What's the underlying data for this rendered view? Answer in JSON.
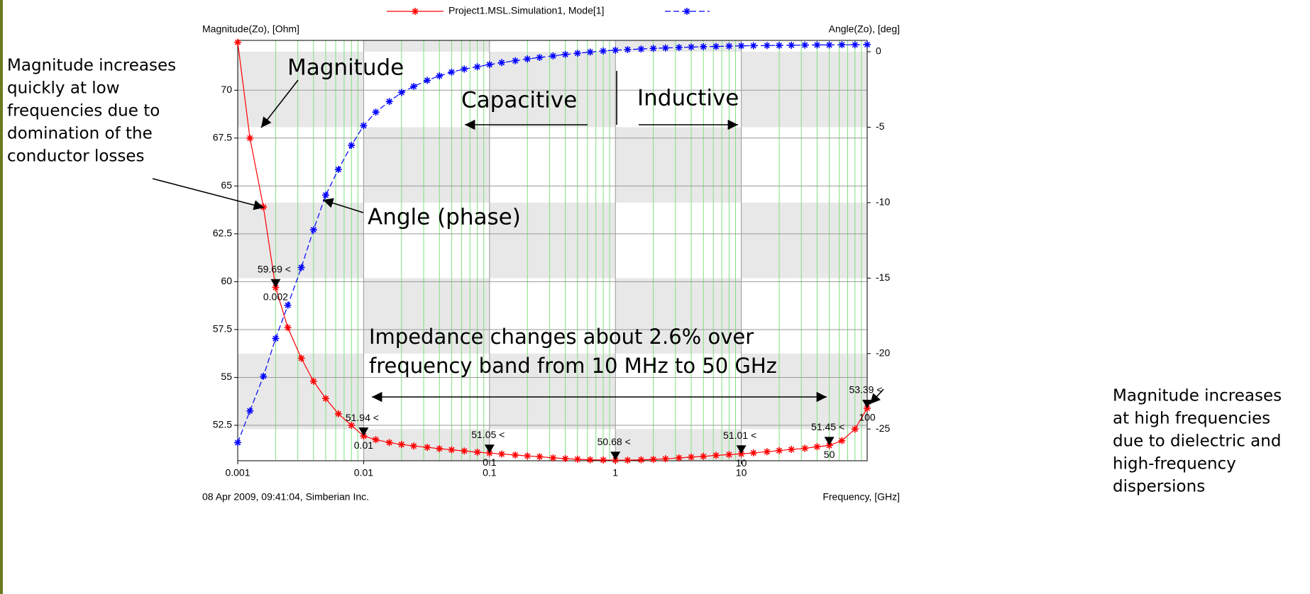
{
  "chart_data": {
    "type": "line",
    "legend_entries": [
      "Project1.MSL.Simulation1, Mode[1]"
    ],
    "y_label": "Magnitude(Zo), [Ohm]",
    "y2_label": "Angle(Zo), [deg]",
    "x_label": "Frequency, [GHz]",
    "footer": "08 Apr 2009, 09:41:04, Simberian Inc.",
    "x_scale": "log",
    "grid": true,
    "xlim": [
      0.001,
      100
    ],
    "xticks": [
      0.001,
      0.01,
      0.1,
      1,
      10
    ],
    "ylim": [
      50.65,
      72.6
    ],
    "yticks": [
      52.5,
      55,
      57.5,
      60,
      62.5,
      65,
      67.5,
      70
    ],
    "y2lim": [
      -27.1,
      0.75
    ],
    "y2ticks": [
      0,
      -5,
      -10,
      -15,
      -20,
      -25
    ],
    "x": [
      0.001,
      0.00125,
      0.0016,
      0.002,
      0.0025,
      0.0032,
      0.004,
      0.005,
      0.0063,
      0.008,
      0.01,
      0.0125,
      0.016,
      0.02,
      0.025,
      0.032,
      0.04,
      0.05,
      0.063,
      0.08,
      0.1,
      0.125,
      0.16,
      0.2,
      0.25,
      0.32,
      0.4,
      0.5,
      0.63,
      0.8,
      1,
      1.25,
      1.6,
      2,
      2.5,
      3.2,
      4,
      5,
      6.3,
      8,
      10,
      12.5,
      16,
      20,
      25,
      32,
      40,
      50,
      63,
      80,
      100
    ],
    "series": [
      {
        "name": "Project1.MSL.Simulation1, Mode[1]",
        "color": "#ff0000",
        "axis": "y",
        "values": [
          72.5,
          67.5,
          63.9,
          59.7,
          57.6,
          56.0,
          54.8,
          53.9,
          53.1,
          52.5,
          51.94,
          51.75,
          51.6,
          51.5,
          51.42,
          51.35,
          51.28,
          51.22,
          51.16,
          51.1,
          51.05,
          51.0,
          50.95,
          50.9,
          50.86,
          50.8,
          50.76,
          50.73,
          50.7,
          50.69,
          50.68,
          50.68,
          50.7,
          50.72,
          50.75,
          50.8,
          50.84,
          50.88,
          50.93,
          50.97,
          51.01,
          51.06,
          51.12,
          51.18,
          51.24,
          51.3,
          51.38,
          51.45,
          51.7,
          52.3,
          53.39
        ]
      },
      {
        "color": "#0000ff",
        "axis": "y2",
        "values": [
          -25.9,
          -23.8,
          -21.5,
          -19.0,
          -16.8,
          -14.3,
          -11.8,
          -9.5,
          -7.8,
          -6.2,
          -4.9,
          -4.0,
          -3.3,
          -2.7,
          -2.3,
          -1.9,
          -1.6,
          -1.35,
          -1.15,
          -1.0,
          -0.85,
          -0.72,
          -0.6,
          -0.48,
          -0.38,
          -0.28,
          -0.18,
          -0.1,
          -0.02,
          0.05,
          0.1,
          0.14,
          0.18,
          0.22,
          0.25,
          0.28,
          0.31,
          0.33,
          0.35,
          0.37,
          0.39,
          0.4,
          0.41,
          0.42,
          0.43,
          0.44,
          0.45,
          0.45,
          0.46,
          0.46,
          0.47
        ]
      }
    ],
    "markers": {
      "x": [
        0.002,
        0.01,
        0.1,
        1,
        10,
        50,
        100
      ],
      "values": [
        59.69,
        51.94,
        51.05,
        50.68,
        51.01,
        51.45,
        53.39
      ],
      "value_labels": [
        "59.69 <",
        "51.94 <",
        "51.05 <",
        "50.68 <",
        "51.01 <",
        "51.45 <",
        "53.39 <"
      ],
      "x_labels": [
        "0.002",
        "0.01",
        "0.1",
        null,
        "10",
        "50",
        "100"
      ]
    },
    "annotations": [
      {
        "lines": [
          "Magnitude increases",
          "quickly at low",
          "frequencies due to",
          "domination of the",
          "conductor losses"
        ]
      },
      {
        "lines": [
          "Magnitude"
        ]
      },
      {
        "lines": [
          "Capacitive"
        ]
      },
      {
        "lines": [
          "Inductive"
        ]
      },
      {
        "lines": [
          "Angle (phase)"
        ]
      },
      {
        "lines": [
          "Impedance changes about 2.6% over",
          "frequency band from 10 MHz to 50 GHz"
        ]
      },
      {
        "lines": [
          "Magnitude increases",
          "at high frequencies",
          "due to dielectric and",
          "high-frequency",
          "dispersions"
        ]
      }
    ]
  }
}
